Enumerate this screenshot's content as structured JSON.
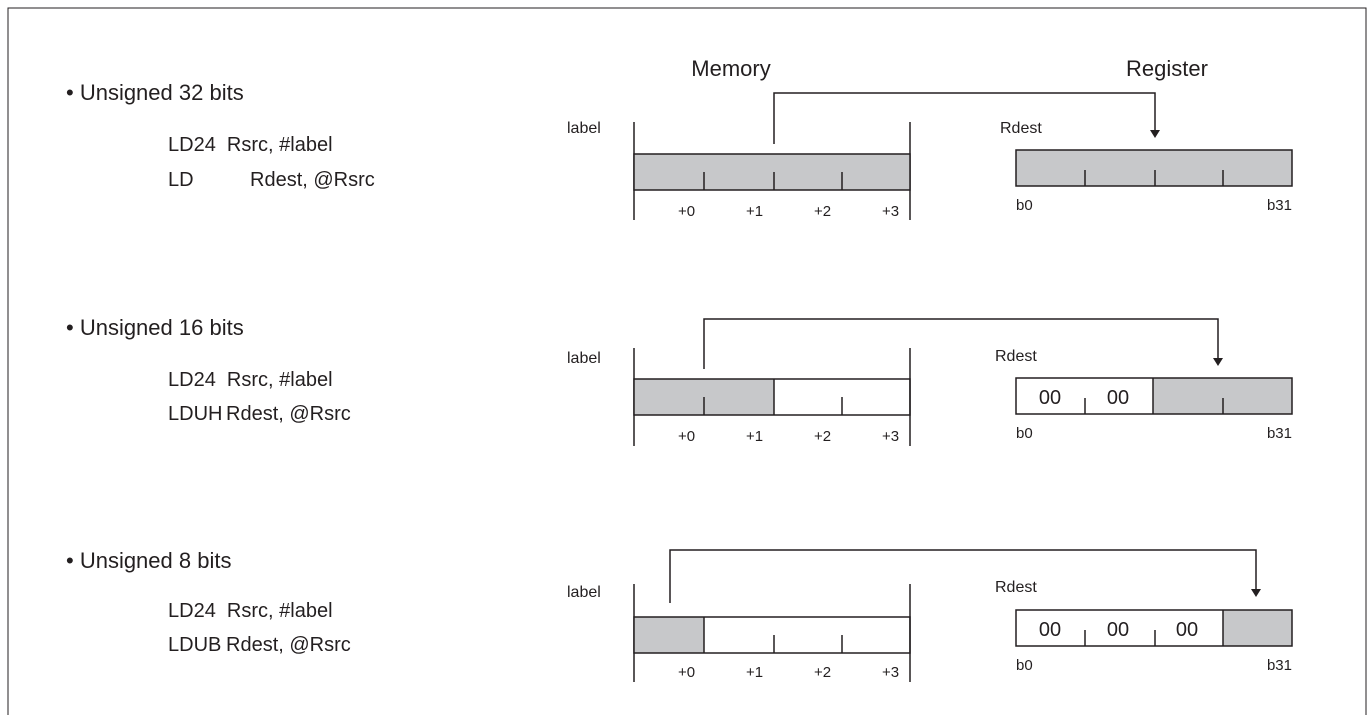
{
  "headers": {
    "memory": "Memory",
    "register": "Register"
  },
  "common": {
    "label": "label",
    "rdest": "Rdest",
    "offsets": [
      "+0",
      "+1",
      "+2",
      "+3"
    ],
    "reg_lo": "b0",
    "reg_hi": "b31",
    "zero_byte": "00"
  },
  "sections": [
    {
      "title": "• Unsigned 32 bits",
      "code_line1": "LD24  Rsrc, #label",
      "code_line2_op": "LD",
      "code_line2_args": "Rdest, @Rsrc",
      "memory_filled_bytes": 4,
      "register_zero_bytes": 0
    },
    {
      "title": "• Unsigned 16 bits",
      "code_line1": "LD24  Rsrc, #label",
      "code_line2_op": "LDUH",
      "code_line2_args": "Rdest, @Rsrc",
      "memory_filled_bytes": 2,
      "register_zero_bytes": 2
    },
    {
      "title": "• Unsigned 8 bits",
      "code_line1": "LD24  Rsrc, #label",
      "code_line2_op": "LDUB",
      "code_line2_args": "Rdest, @Rsrc",
      "memory_filled_bytes": 1,
      "register_zero_bytes": 3
    }
  ]
}
